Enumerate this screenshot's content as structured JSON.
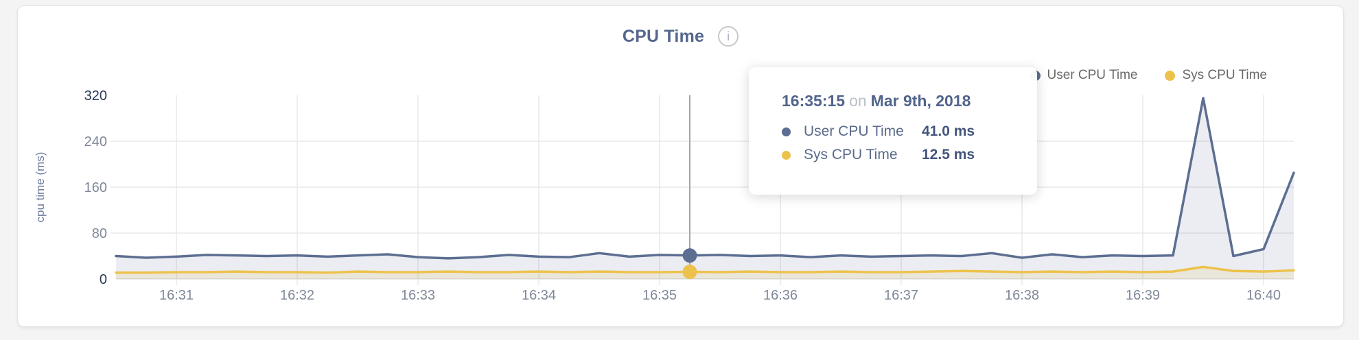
{
  "header": {
    "title": "CPU Time",
    "info_icon_glyph": "i"
  },
  "legend": {
    "items": [
      {
        "label": "User CPU Time",
        "color": "#5c6e91"
      },
      {
        "label": "Sys CPU Time",
        "color": "#edc24c"
      }
    ]
  },
  "tooltip": {
    "time": "16:35:15",
    "connector": "on",
    "date": "Mar 9th, 2018",
    "rows": [
      {
        "label": "User CPU Time",
        "value": "41.0 ms",
        "color": "#5c6e91"
      },
      {
        "label": "Sys CPU Time",
        "value": "12.5 ms",
        "color": "#edc24c"
      }
    ]
  },
  "chart_data": {
    "type": "line",
    "title": "CPU Time",
    "xlabel": "",
    "ylabel": "cpu time (ms)",
    "ylim": [
      0,
      320
    ],
    "y_ticks": [
      0,
      80,
      160,
      240,
      320
    ],
    "x_tick_labels": [
      "16:31",
      "16:32",
      "16:33",
      "16:34",
      "16:35",
      "16:36",
      "16:37",
      "16:38",
      "16:39",
      "16:40"
    ],
    "x_tick_indices": [
      2,
      6,
      10,
      14,
      18,
      22,
      26,
      30,
      34,
      38
    ],
    "grid": true,
    "legend_position": "top-right",
    "x": [
      "16:30:30",
      "16:30:45",
      "16:31:00",
      "16:31:15",
      "16:31:30",
      "16:31:45",
      "16:32:00",
      "16:32:15",
      "16:32:30",
      "16:32:45",
      "16:33:00",
      "16:33:15",
      "16:33:30",
      "16:33:45",
      "16:34:00",
      "16:34:15",
      "16:34:30",
      "16:34:45",
      "16:35:00",
      "16:35:15",
      "16:35:30",
      "16:35:45",
      "16:36:00",
      "16:36:15",
      "16:36:30",
      "16:36:45",
      "16:37:00",
      "16:37:15",
      "16:37:30",
      "16:37:45",
      "16:38:00",
      "16:38:15",
      "16:38:30",
      "16:38:45",
      "16:39:00",
      "16:39:15",
      "16:39:30",
      "16:39:45",
      "16:40:00",
      "16:40:15"
    ],
    "series": [
      {
        "name": "User CPU Time",
        "color": "#5c6e91",
        "fill": "rgba(92,110,145,0.12)",
        "values": [
          40,
          37,
          39,
          42,
          41,
          40,
          41,
          39,
          41,
          43,
          38,
          36,
          38,
          42,
          39,
          38,
          45,
          39,
          42,
          41,
          42,
          40,
          41,
          38,
          41,
          39,
          40,
          41,
          40,
          45,
          37,
          43,
          38,
          41,
          40,
          41,
          315,
          40,
          52,
          185
        ]
      },
      {
        "name": "Sys CPU Time",
        "color": "#edc24c",
        "fill": "rgba(238,195,78,0.15)",
        "values": [
          11,
          11,
          12,
          12,
          13,
          12,
          12,
          11,
          13,
          12,
          12,
          13,
          12,
          12,
          13,
          12,
          13,
          12,
          12,
          12.5,
          12,
          13,
          12,
          12,
          13,
          12,
          12,
          13,
          14,
          13,
          12,
          13,
          12,
          13,
          12,
          13,
          21,
          14,
          13,
          15
        ]
      }
    ],
    "hover": {
      "index": 19,
      "time": "16:35:15"
    },
    "colors": {
      "grid": "#e8e8e8",
      "axis_baseline": "#e2e2e2",
      "tick": "#7e8899",
      "tick_strong": "#2c3a58",
      "axis_title": "#6a7b9b",
      "hover_line": "#a6a6a6"
    }
  }
}
